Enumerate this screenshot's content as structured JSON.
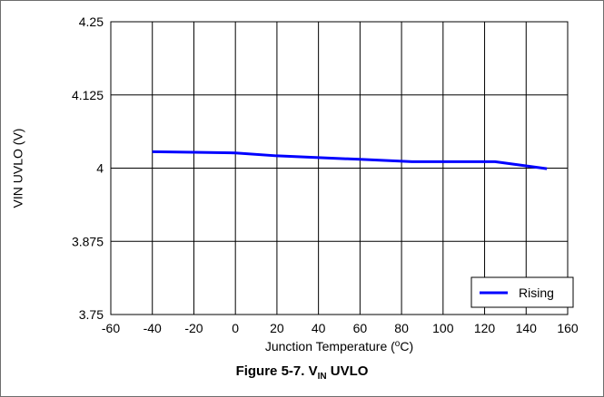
{
  "figure": {
    "caption_prefix": "Figure 5-7. V",
    "caption_sub": "IN",
    "caption_suffix": " UVLO"
  },
  "chart_data": {
    "type": "line",
    "xlabel_prefix": "Junction Temperature (",
    "xlabel_sup": "o",
    "xlabel_suffix": "C)",
    "ylabel": "VIN UVLO (V)",
    "xlim": [
      -60,
      160
    ],
    "ylim": [
      3.75,
      4.25
    ],
    "xticks": [
      -60,
      -40,
      -20,
      0,
      20,
      40,
      60,
      80,
      100,
      120,
      140,
      160
    ],
    "xtick_labels": [
      "-60",
      "-40",
      "-20",
      "0",
      "20",
      "40",
      "60",
      "80",
      "100",
      "120",
      "140",
      "160"
    ],
    "yticks": [
      3.75,
      3.875,
      4,
      4.125,
      4.25
    ],
    "ytick_labels": [
      "3.75",
      "3.875",
      "4",
      "4.125",
      "4.25"
    ],
    "grid": true,
    "legend_position": "bottom-right",
    "series": [
      {
        "name": "Rising",
        "color": "#0000ff",
        "x": [
          -40,
          -20,
          0,
          20,
          40,
          60,
          85,
          105,
          125,
          150
        ],
        "y": [
          4.028,
          4.027,
          4.026,
          4.021,
          4.018,
          4.015,
          4.011,
          4.011,
          4.011,
          3.999
        ]
      }
    ]
  }
}
